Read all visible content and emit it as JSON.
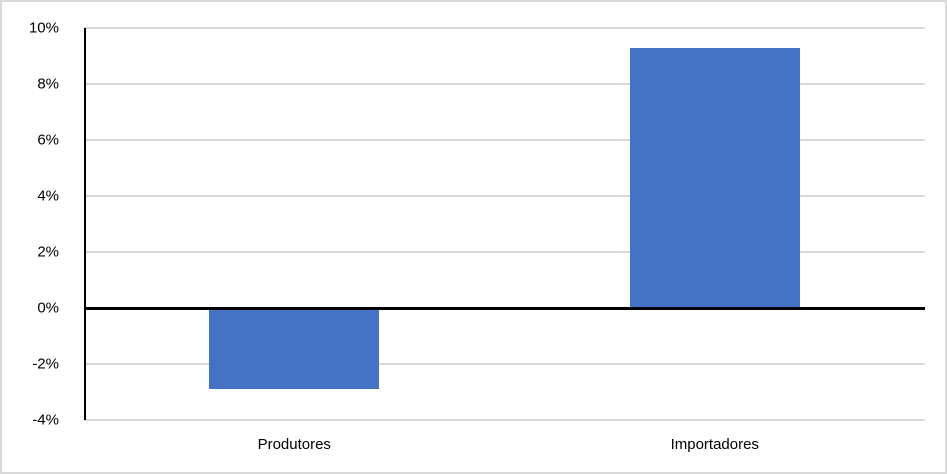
{
  "chart_data": {
    "type": "bar",
    "title": "",
    "xlabel": "",
    "ylabel": "",
    "categories": [
      "Produtores",
      "Importadores"
    ],
    "values": [
      -2.9,
      9.3
    ],
    "ylim": [
      -4,
      10
    ],
    "ytick_step": 2,
    "yticks": [
      -4,
      -2,
      0,
      2,
      4,
      6,
      8,
      10
    ],
    "ytick_labels": [
      "-4%",
      "-2%",
      "0%",
      "2%",
      "4%",
      "6%",
      "8%",
      "10%"
    ],
    "grid": true,
    "legend": false,
    "legend_position": "none",
    "bar_color": "#4472C4",
    "gridline_color": "#D9D9D9",
    "axis_line_color": "#000000",
    "zero_line_color": "#000000",
    "chart_border_color": "#D9D9D9",
    "background_color": "#FFFFFF",
    "label_color": "#000000"
  }
}
